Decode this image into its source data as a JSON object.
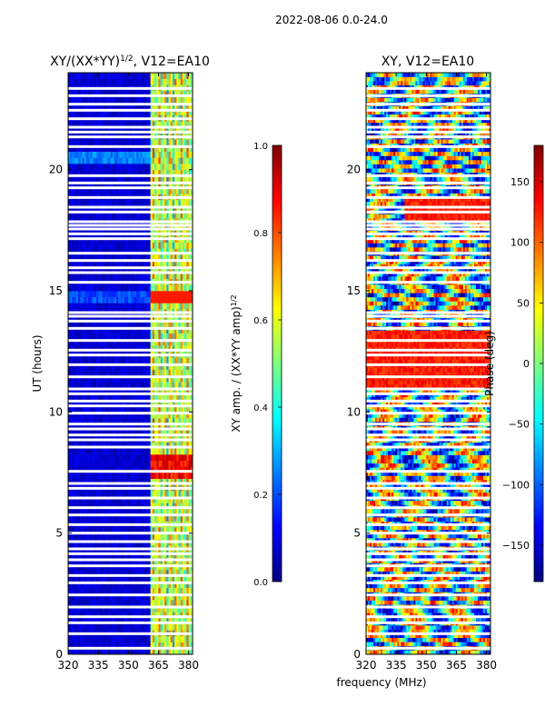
{
  "chart_data": [
    {
      "type": "heatmap",
      "title_main": "XY/(XX*YY)",
      "title_sup": "1/2",
      "title_rest": ", V12=EA10",
      "ylabel": "UT (hours)",
      "xlim": [
        320,
        382
      ],
      "ylim": [
        0,
        24
      ],
      "xticks": [
        "320",
        "335",
        "350",
        "365",
        "380"
      ],
      "xtick_values": [
        320,
        335,
        350,
        365,
        380
      ],
      "yticks": [
        "0",
        "5",
        "10",
        "15",
        "20"
      ],
      "ytick_values": [
        0,
        5,
        10,
        15,
        20
      ],
      "colorbar": {
        "label": "XY amp. / (XX*YY amp)",
        "label_sup": "1/2",
        "range": [
          0.0,
          1.0
        ],
        "ticks": [
          "0.0",
          "0.2",
          "0.4",
          "0.6",
          "0.8",
          "1.0"
        ],
        "tick_values": [
          0.0,
          0.2,
          0.4,
          0.6,
          0.8,
          1.0
        ],
        "colormap": "jet"
      },
      "description_values": {
        "low_band_level": 0.05,
        "high_band_start_mhz": 361,
        "high_band_level": 0.6
      }
    },
    {
      "type": "heatmap",
      "title": "XY, V12=EA10",
      "xlim": [
        320,
        382
      ],
      "ylim": [
        0,
        24
      ],
      "xticks": [
        "320",
        "335",
        "350",
        "365",
        "380"
      ],
      "xtick_values": [
        320,
        335,
        350,
        365,
        380
      ],
      "yticks": [
        "0",
        "5",
        "10",
        "15",
        "20"
      ],
      "ytick_values": [
        0,
        5,
        10,
        15,
        20
      ],
      "colorbar": {
        "label": "Phase (deg)",
        "range": [
          -180,
          180
        ],
        "ticks": [
          "−150",
          "−100",
          "−50",
          "0",
          "50",
          "100",
          "150"
        ],
        "tick_values": [
          -150,
          -100,
          -50,
          0,
          50,
          100,
          150
        ],
        "colormap": "jet"
      }
    }
  ],
  "suptitle": "2022-08-06 0.0-24.0",
  "xlabel": "frequency (MHz)",
  "gap_hours": [
    0.25,
    0.85,
    1.3,
    1.55,
    1.95,
    2.45,
    2.95,
    3.25,
    3.65,
    3.9,
    4.15,
    4.35,
    4.65,
    5.0,
    5.35,
    5.75,
    6.05,
    6.45,
    6.85,
    7.05,
    7.55,
    8.55,
    8.85,
    9.05,
    9.3,
    9.5,
    9.95,
    10.25,
    10.45,
    10.75,
    10.95,
    11.45,
    11.95,
    12.35,
    12.55,
    12.95,
    13.45,
    13.75,
    13.95,
    14.1,
    15.35,
    15.75,
    15.95,
    16.25,
    16.55,
    17.15,
    17.35,
    17.55,
    17.7,
    17.85,
    18.25,
    18.45,
    18.85,
    19.25,
    19.45,
    19.75,
    20.95,
    21.35,
    21.55,
    21.75,
    22.1,
    22.45,
    22.7,
    23.05,
    23.35
  ]
}
